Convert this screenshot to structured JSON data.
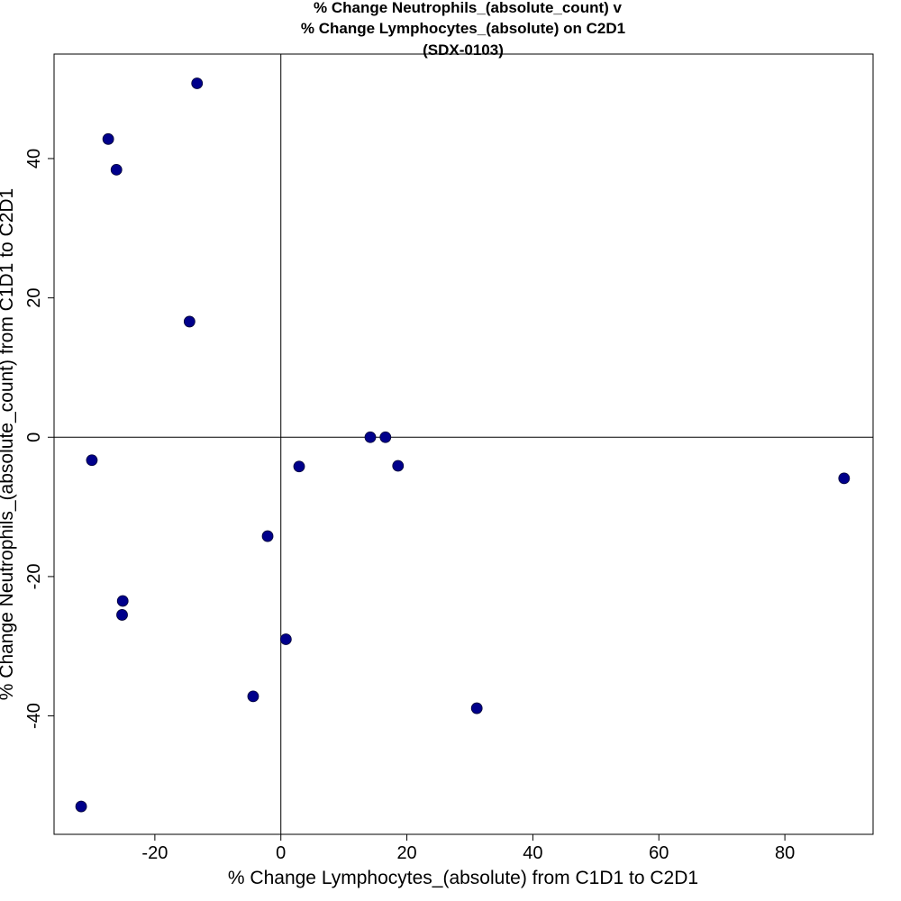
{
  "chart_data": {
    "type": "scatter",
    "title_lines": [
      "% Change Neutrophils_(absolute_count) v",
      "% Change Lymphocytes_(absolute) on C2D1",
      "(SDX-0103)"
    ],
    "xlabel": "% Change Lymphocytes_(absolute) from C1D1 to C2D1",
    "ylabel": "% Change Neutrophils_(absolute_count) from C1D1 to C2D1",
    "xlim": [
      -36,
      94
    ],
    "ylim": [
      -57,
      55
    ],
    "xticks": [
      -20,
      0,
      20,
      40,
      60,
      80
    ],
    "yticks": [
      -40,
      -20,
      0,
      20,
      40
    ],
    "reference_lines": {
      "x": 0,
      "y": 0
    },
    "grid": false,
    "point_color": "#00008B",
    "points": [
      {
        "x": -13.3,
        "y": 50.8
      },
      {
        "x": -27.4,
        "y": 42.8
      },
      {
        "x": -26.1,
        "y": 38.4
      },
      {
        "x": -14.5,
        "y": 16.6
      },
      {
        "x": -30.0,
        "y": -3.3
      },
      {
        "x": 14.2,
        "y": 0.0
      },
      {
        "x": 16.6,
        "y": 0.0
      },
      {
        "x": 2.9,
        "y": -4.2
      },
      {
        "x": 18.6,
        "y": -4.1
      },
      {
        "x": 89.4,
        "y": -5.9
      },
      {
        "x": -2.1,
        "y": -14.2
      },
      {
        "x": -25.1,
        "y": -23.5
      },
      {
        "x": -25.2,
        "y": -25.5
      },
      {
        "x": 0.8,
        "y": -29.0
      },
      {
        "x": -4.4,
        "y": -37.2
      },
      {
        "x": 31.1,
        "y": -38.9
      },
      {
        "x": -31.7,
        "y": -53.0
      }
    ]
  }
}
